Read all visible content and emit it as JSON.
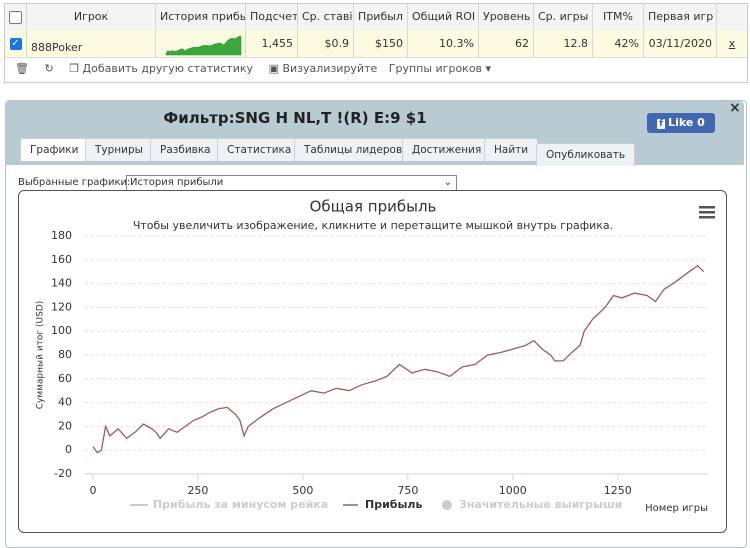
{
  "table": {
    "headers": [
      "Игрок",
      "История прибы",
      "Подсчет",
      "Ср. ставі",
      "Прибыл",
      "Общий ROI",
      "Уровень",
      "Ср. игры",
      "ITM%",
      "Первая игр"
    ],
    "row": {
      "player": "888Poker",
      "cells": [
        "1,455",
        "$0.9",
        "$150",
        "10.3%",
        "62",
        "12.8",
        "42%",
        "03/11/2020"
      ],
      "remove": "x"
    },
    "toolbar": [
      "Добавить другую статистику",
      "Визуализируйте",
      "Группы игроков"
    ]
  },
  "panel": {
    "title": "Фильтр:SNG H NL,T !(R) E:9 $1",
    "like": "Like 0",
    "close": "×",
    "tabs": [
      "Графики",
      "Турниры",
      "Разбивка",
      "Статистика",
      "Таблицы лидеров",
      "Достижения",
      "Найти",
      "Опубликовать"
    ],
    "selector_label": "Выбранные графики:",
    "selector_value": "История прибыли"
  },
  "chart_data": {
    "type": "line",
    "title": "Общая прибыль",
    "subtitle": "Чтобы увеличить изображение, кликните и перетащите мышкой внутрь графика.",
    "y_label": "Суммарный итог (USD)",
    "x_label": "Номер игры",
    "x": [
      0,
      10,
      20,
      30,
      40,
      60,
      80,
      100,
      120,
      140,
      150,
      160,
      180,
      200,
      220,
      240,
      260,
      280,
      300,
      320,
      340,
      350,
      360,
      370,
      400,
      430,
      460,
      490,
      520,
      550,
      580,
      610,
      640,
      670,
      700,
      730,
      760,
      790,
      820,
      850,
      880,
      910,
      940,
      970,
      1000,
      1030,
      1050,
      1070,
      1090,
      1100,
      1120,
      1140,
      1160,
      1170,
      1190,
      1220,
      1240,
      1260,
      1290,
      1320,
      1340,
      1360,
      1390,
      1420,
      1440,
      1455
    ],
    "series": [
      {
        "name": "Прибыль",
        "color": "#a05a5c",
        "values": [
          3,
          -2,
          0,
          20,
          12,
          18,
          10,
          15,
          22,
          18,
          15,
          10,
          18,
          15,
          20,
          25,
          28,
          32,
          35,
          36,
          30,
          25,
          12,
          20,
          28,
          35,
          40,
          45,
          50,
          48,
          52,
          50,
          55,
          58,
          62,
          72,
          65,
          68,
          66,
          62,
          70,
          72,
          80,
          82,
          85,
          88,
          92,
          85,
          80,
          75,
          75,
          82,
          88,
          100,
          110,
          120,
          130,
          128,
          132,
          130,
          125,
          135,
          142,
          150,
          155,
          150
        ]
      }
    ],
    "hidden_series": [
      "Прибыль за минусом рейка",
      "Значительные выигрыши"
    ],
    "xlim": [
      -20,
      1465
    ],
    "ylim": [
      -20,
      180
    ],
    "xticks": [
      0,
      250,
      500,
      750,
      1000,
      1250
    ],
    "yticks": [
      -20,
      0,
      20,
      40,
      60,
      80,
      100,
      120,
      140,
      160,
      180
    ],
    "grid": true
  }
}
